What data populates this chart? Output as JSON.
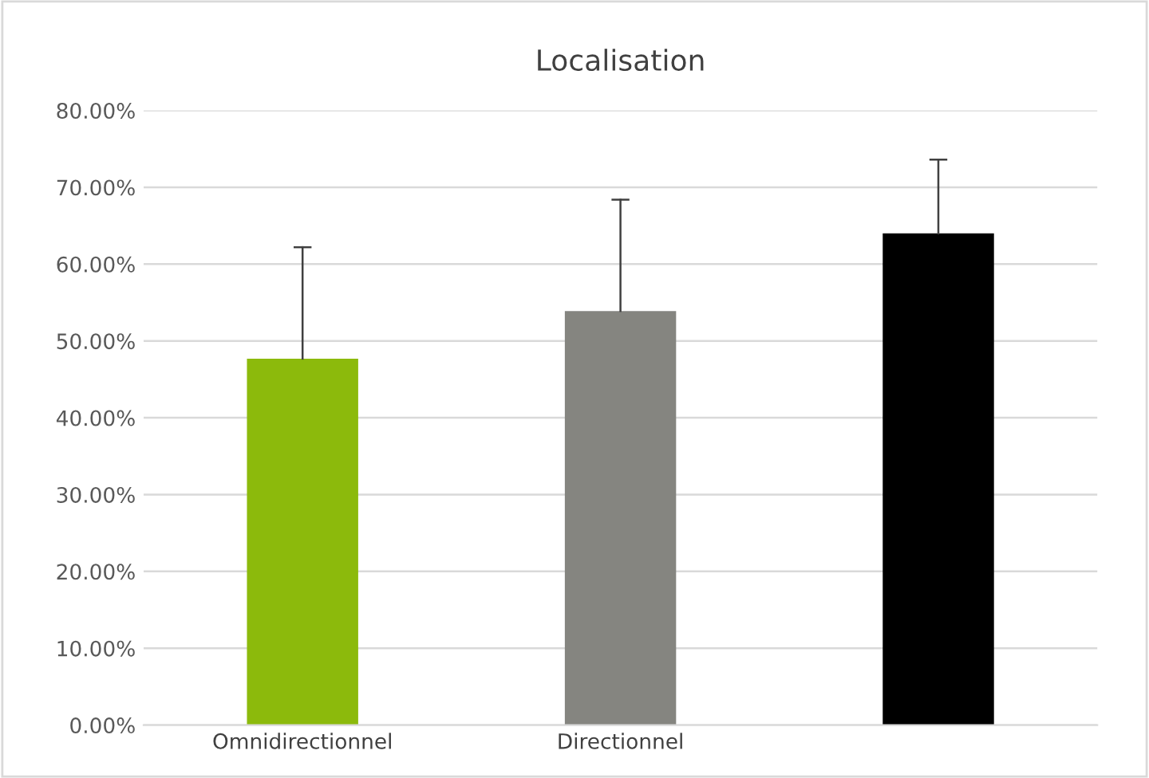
{
  "chart_data": {
    "type": "bar",
    "title": "Localisation",
    "categories": [
      "Omnidirectionnel",
      "Directionnel",
      null
    ],
    "values": [
      47.7,
      53.9,
      64.0
    ],
    "colors": [
      "#8cba0c",
      "#858580",
      "#000000"
    ],
    "errors": [
      [
        47.7,
        62.2
      ],
      [
        53.9,
        68.4
      ],
      [
        64.0,
        73.6
      ]
    ],
    "ylim": [
      0,
      80
    ],
    "yticks": [
      {
        "value": 0,
        "label": "0.00%"
      },
      {
        "value": 10,
        "label": "10.00%"
      },
      {
        "value": 20,
        "label": "20.00%"
      },
      {
        "value": 30,
        "label": "30.00%"
      },
      {
        "value": 40,
        "label": "40.00%"
      },
      {
        "value": 50,
        "label": "50.00%"
      },
      {
        "value": 60,
        "label": "60.00%"
      },
      {
        "value": 70,
        "label": "70.00%"
      },
      {
        "value": 80,
        "label": "80.00%"
      }
    ],
    "grid": "y",
    "legend": false
  }
}
